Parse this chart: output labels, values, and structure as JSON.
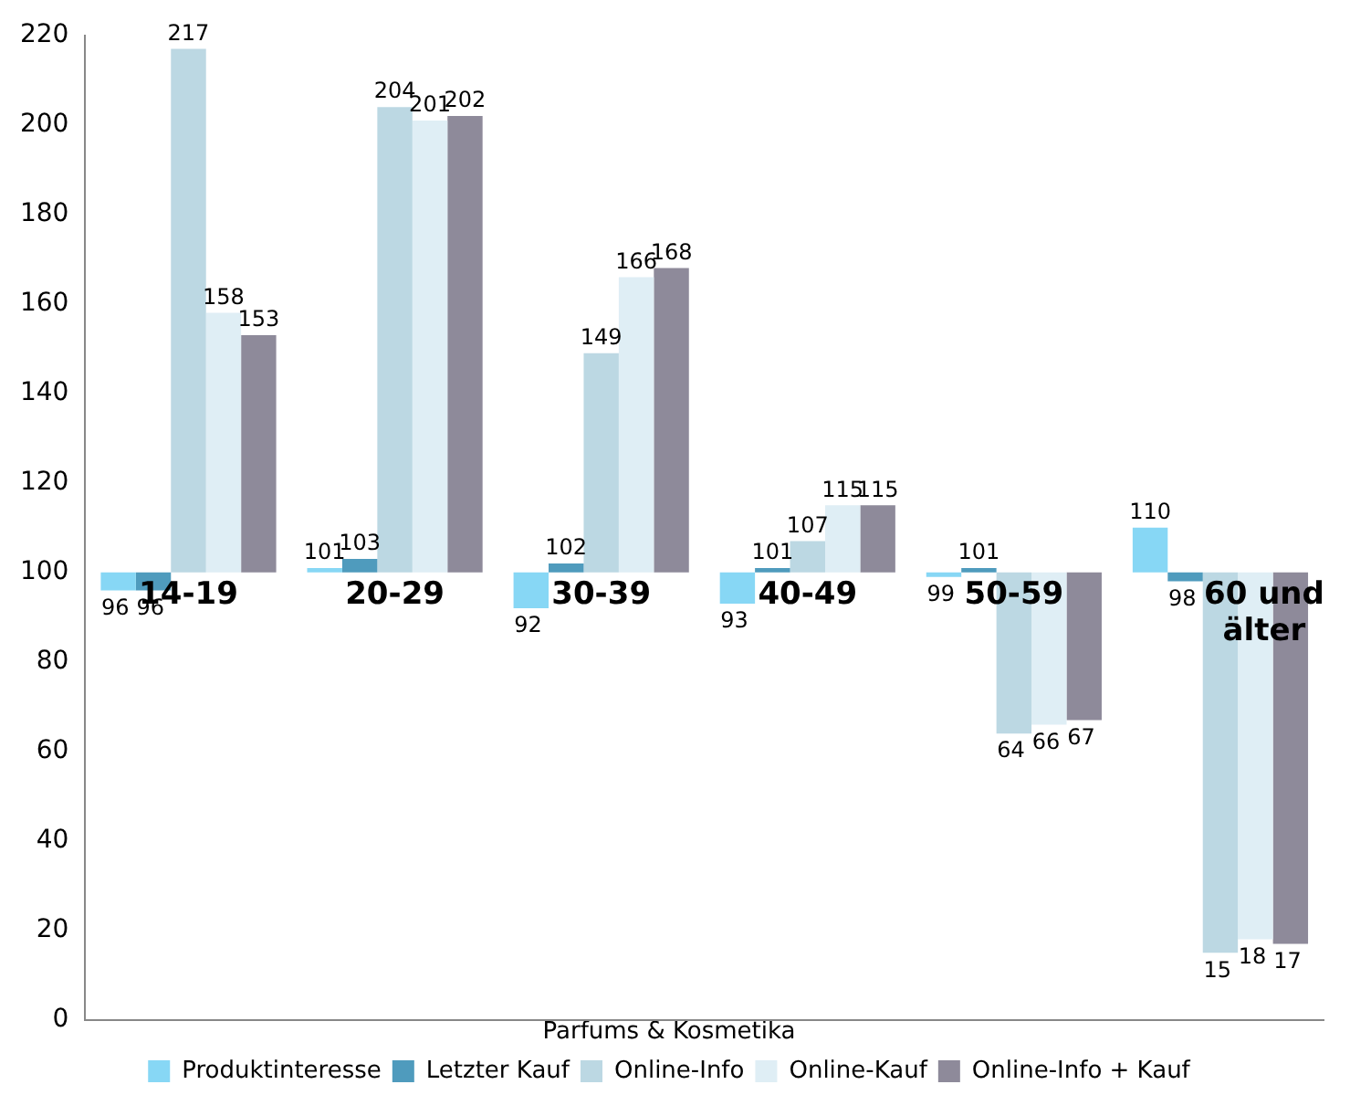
{
  "chart_data": {
    "type": "bar",
    "legend_title": "Parfums & Kosmetika",
    "categories": [
      "14-19",
      "20-29",
      "30-39",
      "40-49",
      "50-59",
      "60 und älter"
    ],
    "series": [
      {
        "name": "Produktinteresse",
        "color": "#87d7f5",
        "base": [
          100,
          100,
          100,
          100,
          100,
          100
        ],
        "values": [
          -4,
          1,
          -8,
          -7,
          -1,
          10
        ],
        "value_labels": [
          "96",
          "101",
          "92",
          "93",
          "99",
          "110"
        ]
      },
      {
        "name": "Letzter Kauf",
        "color": "#4f9bbd",
        "base": [
          100,
          100,
          100,
          100,
          100,
          100
        ],
        "values": [
          -4,
          3,
          2,
          1,
          1,
          -2
        ],
        "value_labels": [
          "96",
          "103",
          "102",
          "101",
          "101",
          "98"
        ]
      },
      {
        "name": "Online-Info",
        "color": "#bcd8e3",
        "base": [
          100,
          100,
          100,
          100,
          100,
          100
        ],
        "values": [
          117,
          104,
          49,
          7,
          -36,
          -85
        ],
        "value_labels": [
          "217",
          "204",
          "149",
          "107",
          "64",
          "15"
        ]
      },
      {
        "name": "Online-Kauf",
        "color": "#dfeef5",
        "base": [
          100,
          100,
          100,
          100,
          100,
          100
        ],
        "values": [
          58,
          101,
          66,
          15,
          -34,
          -82
        ],
        "value_labels": [
          "158",
          "201",
          "166",
          "115",
          "66",
          "18"
        ]
      },
      {
        "name": "Online-Info + Kauf",
        "color": "#8e8a9a",
        "base": [
          100,
          100,
          100,
          100,
          100,
          100
        ],
        "values": [
          53,
          102,
          68,
          15,
          -33,
          -83
        ],
        "value_labels": [
          "153",
          "202",
          "168",
          "115",
          "67",
          "17"
        ]
      }
    ],
    "ylim": [
      0,
      220
    ],
    "yticks": [
      0,
      20,
      40,
      60,
      80,
      100,
      120,
      140,
      160,
      180,
      200,
      220
    ],
    "grid": false,
    "legend": "bottom"
  }
}
